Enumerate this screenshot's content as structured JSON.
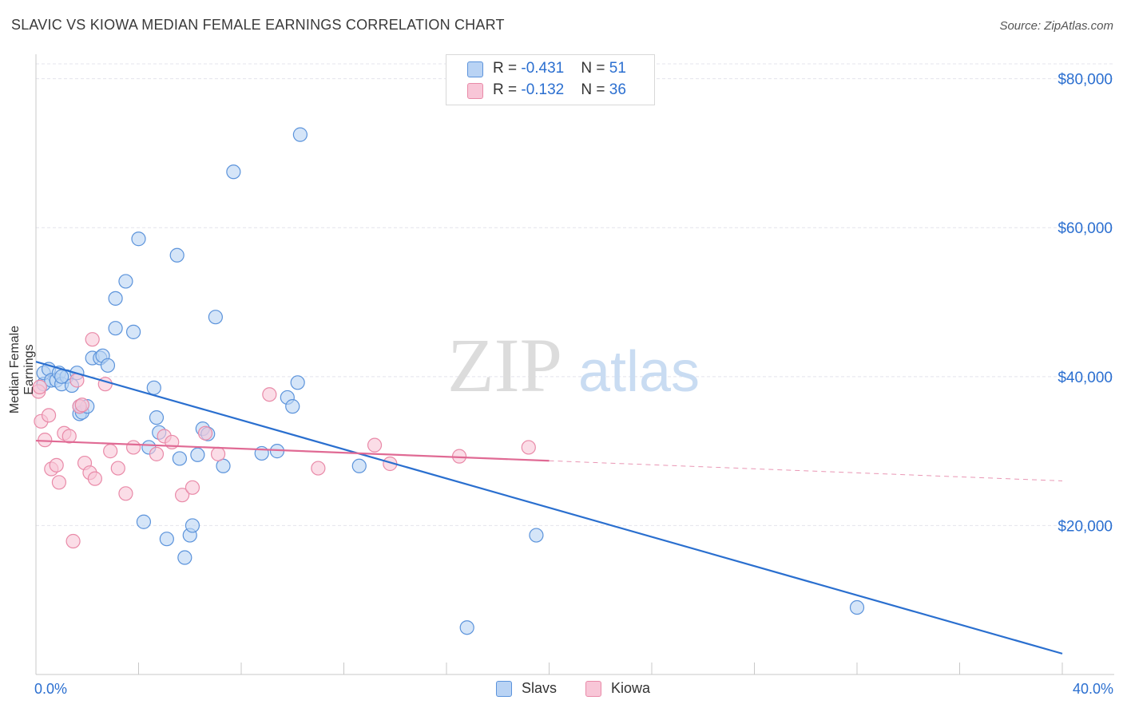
{
  "title": "SLAVIC VS KIOWA MEDIAN FEMALE EARNINGS CORRELATION CHART",
  "source": "Source: ZipAtlas.com",
  "watermark": {
    "zip": "ZIP",
    "atlas": "atlas"
  },
  "colors": {
    "slavs_fill": "#b9d3f4",
    "slavs_stroke": "#5b93db",
    "slavs_line": "#2a6fcf",
    "kiowa_fill": "#f8c6d7",
    "kiowa_stroke": "#e98aa8",
    "kiowa_line": "#e06a94",
    "axis_text": "#2b6fd0",
    "grid": "#e4e4ec"
  },
  "legend": {
    "rows": [
      {
        "r_label": "R = ",
        "r_value": "-0.431",
        "n_label": "N = ",
        "n_value": "51"
      },
      {
        "r_label": "R = ",
        "r_value": "-0.132",
        "n_label": "N = ",
        "n_value": "36"
      }
    ],
    "bottom": [
      "Slavs",
      "Kiowa"
    ]
  },
  "chart_data": {
    "type": "scatter",
    "title": "SLAVIC VS KIOWA MEDIAN FEMALE EARNINGS CORRELATION CHART",
    "xlabel": "",
    "ylabel": "Median Female Earnings",
    "xlim": [
      0,
      40
    ],
    "ylim": [
      0,
      82000
    ],
    "x_tick_labels": [
      "0.0%",
      "40.0%"
    ],
    "y_ticks": [
      20000,
      40000,
      60000,
      80000
    ],
    "y_tick_labels": [
      "$20,000",
      "$40,000",
      "$60,000",
      "$80,000"
    ],
    "series": [
      {
        "name": "Slavs",
        "points": [
          [
            0.3,
            39000
          ],
          [
            0.3,
            40500
          ],
          [
            0.5,
            41000
          ],
          [
            0.6,
            39500
          ],
          [
            0.8,
            39500
          ],
          [
            0.9,
            40500
          ],
          [
            1.0,
            39000
          ],
          [
            1.2,
            40000
          ],
          [
            1.4,
            38800
          ],
          [
            1.6,
            40500
          ],
          [
            1.7,
            35000
          ],
          [
            1.8,
            35200
          ],
          [
            2.0,
            36000
          ],
          [
            1.7,
            36000
          ],
          [
            2.2,
            42500
          ],
          [
            2.5,
            42500
          ],
          [
            2.6,
            42800
          ],
          [
            2.8,
            41500
          ],
          [
            3.1,
            50500
          ],
          [
            3.1,
            46500
          ],
          [
            3.5,
            52800
          ],
          [
            3.8,
            46000
          ],
          [
            4.0,
            58500
          ],
          [
            4.2,
            20500
          ],
          [
            4.4,
            30500
          ],
          [
            4.6,
            38500
          ],
          [
            4.7,
            34500
          ],
          [
            4.8,
            32500
          ],
          [
            5.1,
            18200
          ],
          [
            5.5,
            56300
          ],
          [
            5.6,
            29000
          ],
          [
            5.8,
            15700
          ],
          [
            6.0,
            18700
          ],
          [
            6.1,
            20000
          ],
          [
            6.3,
            29500
          ],
          [
            6.5,
            33000
          ],
          [
            6.7,
            32300
          ],
          [
            7.0,
            48000
          ],
          [
            7.3,
            28000
          ],
          [
            7.7,
            67500
          ],
          [
            8.8,
            29700
          ],
          [
            9.4,
            30000
          ],
          [
            9.8,
            37200
          ],
          [
            10.0,
            36000
          ],
          [
            10.2,
            39200
          ],
          [
            10.3,
            72500
          ],
          [
            12.6,
            28000
          ],
          [
            19.5,
            18700
          ],
          [
            32.0,
            9000
          ],
          [
            16.8,
            6300
          ],
          [
            1.0,
            40000
          ]
        ]
      },
      {
        "name": "Kiowa",
        "points": [
          [
            0.1,
            38000
          ],
          [
            0.2,
            34000
          ],
          [
            0.35,
            31500
          ],
          [
            0.5,
            34800
          ],
          [
            0.6,
            27600
          ],
          [
            0.8,
            28100
          ],
          [
            0.9,
            25800
          ],
          [
            1.1,
            32400
          ],
          [
            1.3,
            32000
          ],
          [
            1.45,
            17900
          ],
          [
            1.6,
            39500
          ],
          [
            1.7,
            36000
          ],
          [
            1.8,
            36200
          ],
          [
            1.9,
            28400
          ],
          [
            2.1,
            27100
          ],
          [
            2.2,
            45000
          ],
          [
            2.3,
            26300
          ],
          [
            2.7,
            39000
          ],
          [
            2.9,
            30000
          ],
          [
            3.2,
            27700
          ],
          [
            3.5,
            24300
          ],
          [
            3.8,
            30500
          ],
          [
            4.7,
            29600
          ],
          [
            5.0,
            32000
          ],
          [
            5.3,
            31200
          ],
          [
            5.7,
            24100
          ],
          [
            6.1,
            25100
          ],
          [
            6.6,
            32400
          ],
          [
            7.1,
            29600
          ],
          [
            9.1,
            37600
          ],
          [
            11.0,
            27700
          ],
          [
            13.2,
            30800
          ],
          [
            13.8,
            28300
          ],
          [
            16.5,
            29300
          ],
          [
            19.2,
            30500
          ],
          [
            0.15,
            38600
          ]
        ]
      }
    ],
    "trend_lines": [
      {
        "name": "Slavs",
        "x": [
          0,
          40
        ],
        "y": [
          42000,
          2800
        ],
        "style": "solid"
      },
      {
        "name": "Kiowa",
        "x": [
          0,
          20
        ],
        "y": [
          31400,
          28700
        ],
        "style": "solid"
      },
      {
        "name": "Kiowa",
        "x": [
          20,
          40
        ],
        "y": [
          28700,
          26000
        ],
        "style": "dashed"
      }
    ],
    "legend_position": "top-center"
  }
}
